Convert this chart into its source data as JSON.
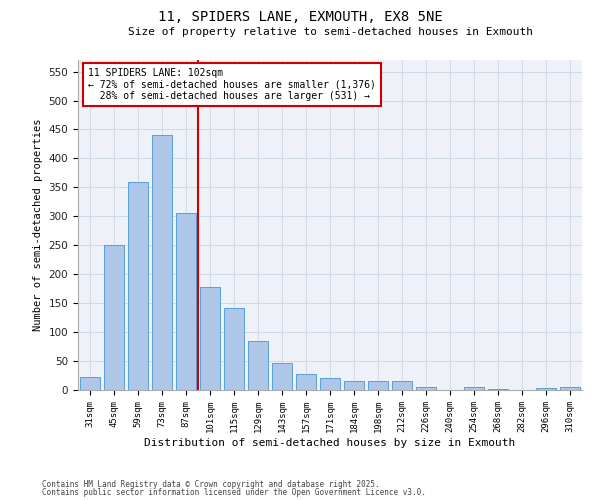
{
  "title": "11, SPIDERS LANE, EXMOUTH, EX8 5NE",
  "subtitle": "Size of property relative to semi-detached houses in Exmouth",
  "xlabel": "Distribution of semi-detached houses by size in Exmouth",
  "ylabel": "Number of semi-detached properties",
  "property_label": "11 SPIDERS LANE: 102sqm",
  "pct_smaller": 72,
  "pct_larger": 28,
  "count_smaller": 1376,
  "count_larger": 531,
  "bin_labels": [
    "31sqm",
    "45sqm",
    "59sqm",
    "73sqm",
    "87sqm",
    "101sqm",
    "115sqm",
    "129sqm",
    "143sqm",
    "157sqm",
    "171sqm",
    "184sqm",
    "198sqm",
    "212sqm",
    "226sqm",
    "240sqm",
    "254sqm",
    "268sqm",
    "282sqm",
    "296sqm",
    "310sqm"
  ],
  "bar_values": [
    22,
    250,
    360,
    440,
    305,
    178,
    142,
    85,
    47,
    27,
    20,
    15,
    16,
    16,
    6,
    0,
    5,
    1,
    0,
    3,
    5
  ],
  "bar_color": "#aec6e8",
  "bar_edge_color": "#5a9fd4",
  "vline_x": 4.5,
  "vline_color": "#cc0000",
  "grid_color": "#c8d8e8",
  "bg_color": "#eef2f8",
  "annotation_box_color": "#cc0000",
  "ylim": [
    0,
    570
  ],
  "yticks": [
    0,
    50,
    100,
    150,
    200,
    250,
    300,
    350,
    400,
    450,
    500,
    550
  ],
  "footnote1": "Contains HM Land Registry data © Crown copyright and database right 2025.",
  "footnote2": "Contains public sector information licensed under the Open Government Licence v3.0."
}
